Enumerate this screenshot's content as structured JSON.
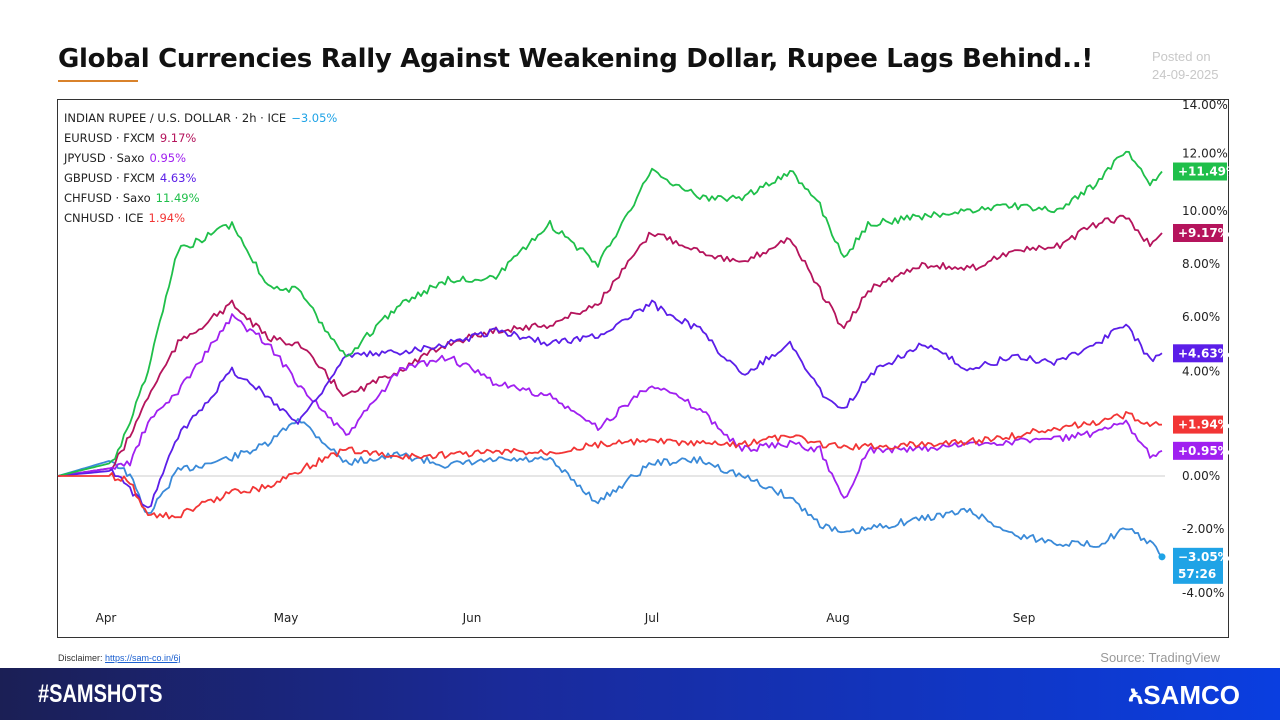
{
  "header": {
    "title": "Global Currencies Rally Against Weakening Dollar, Rupee Lags Behind..!",
    "posted_label": "Posted on",
    "posted_date": "24-09-2025"
  },
  "chart_data": {
    "type": "line",
    "ylim": [
      -4,
      14
    ],
    "yticks": [
      "14.00%",
      "12.00%",
      "10.00%",
      "8.00%",
      "6.00%",
      "4.00%",
      "0.00%",
      "-2.00%",
      "-4.00%"
    ],
    "ytick_values": [
      14,
      12,
      10,
      8,
      6,
      4,
      0,
      -2,
      -4
    ],
    "xticks": [
      {
        "label": "Apr",
        "date": "2025-04-01"
      },
      {
        "label": "May",
        "date": "2025-05-01"
      },
      {
        "label": "Jun",
        "date": "2025-06-01"
      },
      {
        "label": "Jul",
        "date": "2025-07-01"
      },
      {
        "label": "Aug",
        "date": "2025-08-01"
      },
      {
        "label": "Sep",
        "date": "2025-09-01"
      }
    ],
    "x": [
      "2025-03-24",
      "2025-04-02",
      "2025-04-05",
      "2025-04-08",
      "2025-04-13",
      "2025-04-22",
      "2025-04-28",
      "2025-05-03",
      "2025-05-11",
      "2025-05-20",
      "2025-05-28",
      "2025-06-05",
      "2025-06-14",
      "2025-06-22",
      "2025-07-01",
      "2025-07-09",
      "2025-07-16",
      "2025-07-24",
      "2025-07-29",
      "2025-08-02",
      "2025-08-06",
      "2025-08-15",
      "2025-08-23",
      "2025-08-30",
      "2025-09-06",
      "2025-09-13",
      "2025-09-18",
      "2025-09-22",
      "2025-09-24"
    ],
    "series": [
      {
        "name": "INDIAN RUPEE / U.S. DOLLAR · 2h · ICE",
        "legend_value": "−3.05%",
        "badge": "−3.05%",
        "badge_sub": "57:26",
        "color": "#3a8ad8",
        "label_color": "#1fa3e6",
        "values": [
          0,
          0.6,
          0,
          -1.5,
          0.2,
          0.7,
          1.2,
          2.2,
          0.5,
          0.8,
          0.4,
          0.6,
          0.6,
          -1,
          0.5,
          0.6,
          0,
          -0.8,
          -1.8,
          -2.2,
          -2,
          -1.6,
          -1.3,
          -2.2,
          -2.5,
          -2.6,
          -2,
          -2.5,
          -3.05
        ]
      },
      {
        "name": "EURUSD · FXCM",
        "legend_value": "9.17%",
        "badge": "+9.17%",
        "color": "#b5145c",
        "label_color": "#b5145c",
        "values": [
          0,
          0.3,
          1.5,
          3,
          5,
          6.5,
          5.2,
          5,
          3,
          4,
          5,
          5.5,
          5.7,
          6.5,
          9.2,
          8.5,
          8,
          9,
          7,
          5.5,
          7,
          8,
          7.8,
          8.5,
          8.6,
          9.5,
          9.8,
          8.7,
          9.17
        ]
      },
      {
        "name": "JPYUSD · Saxo",
        "legend_value": "0.95%",
        "badge": "+0.95%",
        "color": "#a020f0",
        "label_color": "#a020f0",
        "values": [
          0,
          0.3,
          0.5,
          2,
          3.2,
          6,
          5,
          3.5,
          1.5,
          4,
          4.5,
          3.5,
          3,
          1.8,
          3.5,
          2.5,
          1,
          1.2,
          1,
          -0.9,
          1,
          1,
          1.2,
          1.3,
          1.4,
          1.6,
          2,
          0.8,
          0.95
        ]
      },
      {
        "name": "GBPUSD · FXCM",
        "legend_value": "4.63%",
        "badge": "+4.63%",
        "color": "#5b1ee8",
        "label_color": "#5b1ee8",
        "values": [
          0,
          0.2,
          -0.5,
          -1.3,
          1.5,
          4,
          3,
          2,
          4.5,
          4.7,
          5,
          5.5,
          5,
          5.3,
          6.5,
          5.5,
          3.8,
          5,
          3.2,
          2.5,
          3.8,
          5,
          4,
          4.5,
          4.3,
          5,
          5.7,
          4.4,
          4.63
        ]
      },
      {
        "name": "CHFUSD · Saxo",
        "legend_value": "11.49%",
        "badge": "+11.49%",
        "color": "#1fbf4a",
        "label_color": "#1fbf4a",
        "values": [
          0,
          0.5,
          2,
          4,
          8.5,
          9.5,
          7.2,
          7,
          4.5,
          6.5,
          7.4,
          7.5,
          9.5,
          8,
          11.5,
          10.5,
          10.5,
          11.5,
          10.2,
          8.2,
          9.5,
          9.8,
          10,
          10.2,
          10,
          11,
          12.3,
          11,
          11.49
        ]
      },
      {
        "name": "CNHUSD · ICE",
        "legend_value": "1.94%",
        "badge": "+1.94%",
        "color": "#f23535",
        "label_color": "#f23535",
        "values": [
          0,
          0,
          -0.2,
          -1.5,
          -1.5,
          -0.6,
          -0.4,
          0.2,
          1,
          0.7,
          0.8,
          0.9,
          0.9,
          1.2,
          1.3,
          1.2,
          1.2,
          1.5,
          1.2,
          1.1,
          1.1,
          1.2,
          1.3,
          1.5,
          1.8,
          2,
          2.3,
          2,
          1.94
        ]
      }
    ]
  },
  "footer": {
    "disclaimer_label": "Disclaimer:",
    "disclaimer_link": "https://sam-co.in/6j",
    "source": "Source: TradingView",
    "hashtag": "#SAMSHOTS",
    "logo": "SAMCO"
  }
}
